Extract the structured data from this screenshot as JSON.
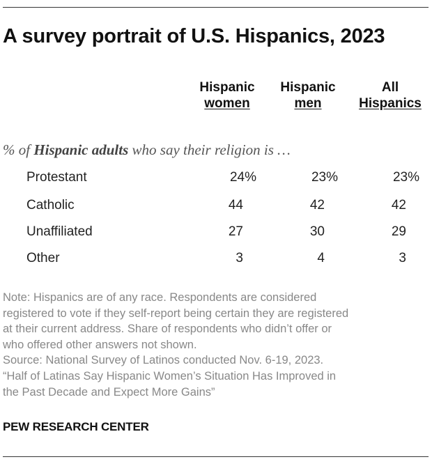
{
  "title": "A survey portrait of U.S. Hispanics, 2023",
  "chart_data": {
    "type": "table",
    "title": "A survey portrait of U.S. Hispanics, 2023",
    "columns": [
      {
        "line1": "Hispanic",
        "line2": "women"
      },
      {
        "line1": "Hispanic",
        "line2": "men"
      },
      {
        "line1": "All",
        "line2": "Hispanics"
      }
    ],
    "subtitle": {
      "pre": "% of ",
      "bold": "Hispanic adults",
      "post": " who say their religion is …"
    },
    "rows": [
      {
        "label": "Protestant",
        "values": [
          "24%",
          "23%",
          "23%"
        ]
      },
      {
        "label": "Catholic",
        "values": [
          "44",
          "42",
          "42"
        ]
      },
      {
        "label": "Unaffiliated",
        "values": [
          "27",
          "30",
          "29"
        ]
      },
      {
        "label": "Other",
        "values": [
          "3",
          "4",
          "3"
        ]
      }
    ]
  },
  "note_lines": [
    "Note: Hispanics are of any race. Respondents are considered",
    "registered to vote if they self-report being certain they are registered",
    "at their current address. Share of respondents who didn’t offer or",
    "who offered other answers not shown.",
    "Source: National Survey of Latinos conducted Nov. 6-19, 2023.",
    "“Half of Latinas Say Hispanic Women’s Situation Has Improved in",
    "the Past Decade and Expect More Gains”"
  ],
  "footer": "PEW RESEARCH CENTER"
}
